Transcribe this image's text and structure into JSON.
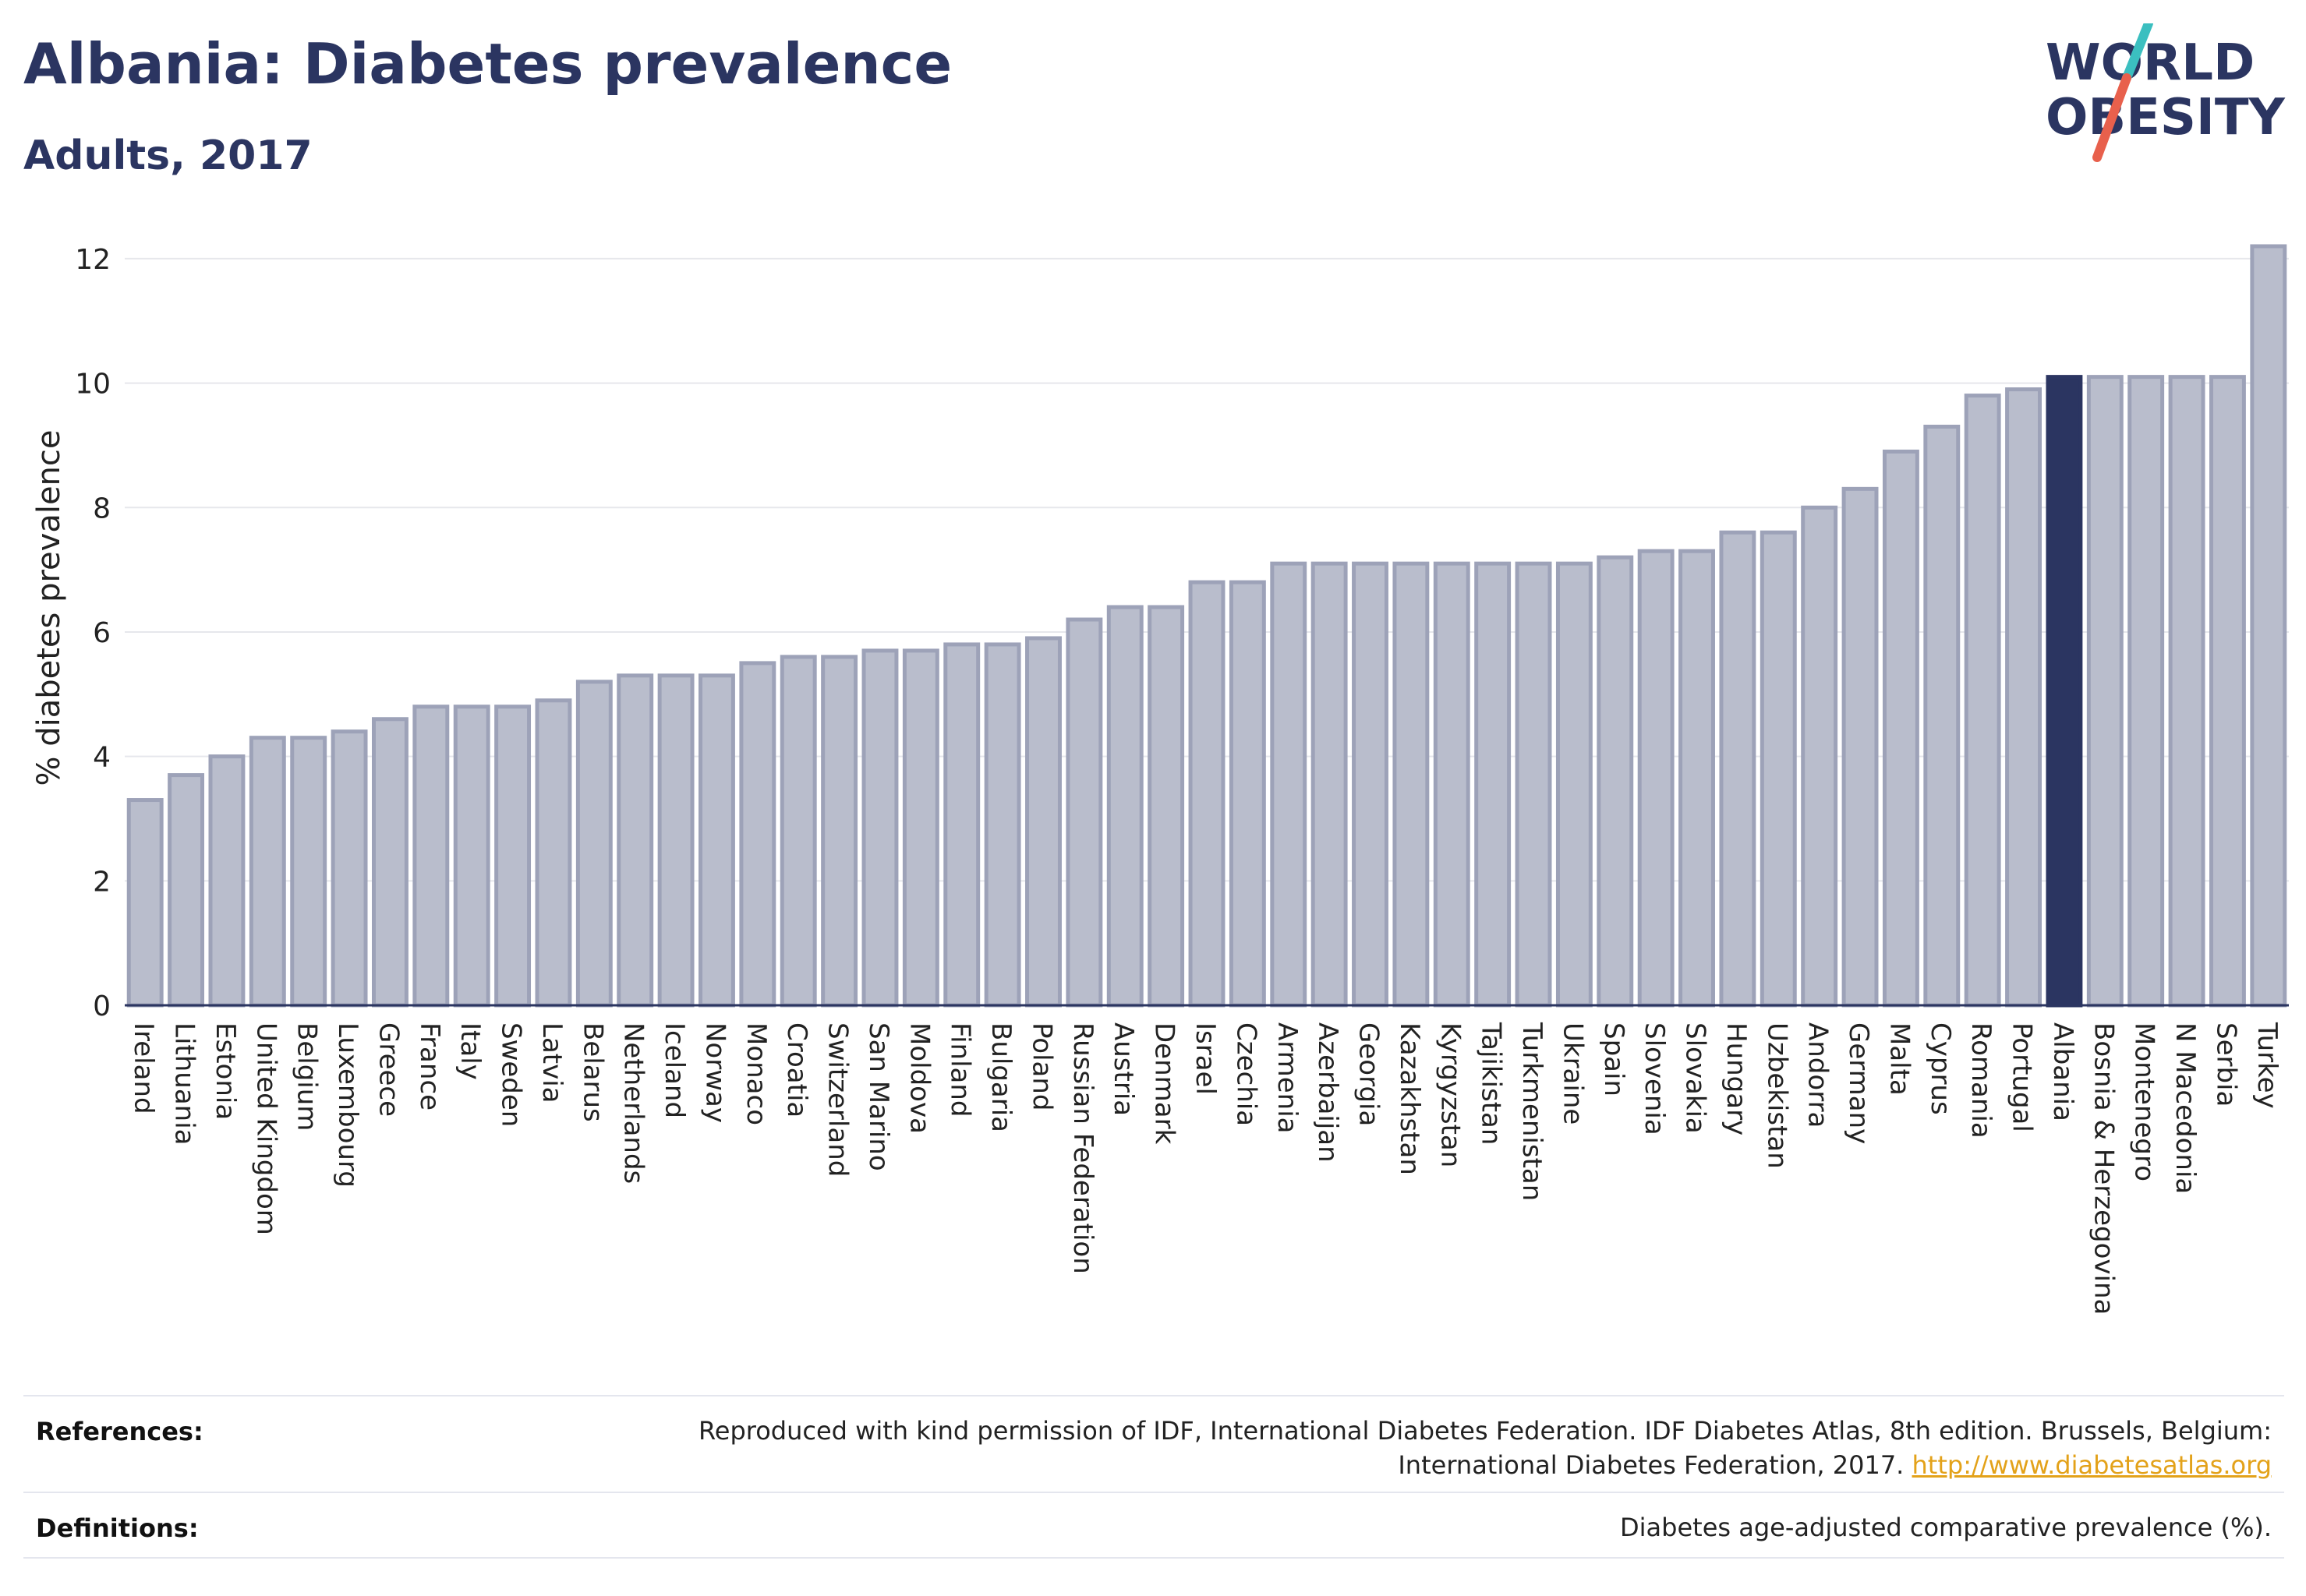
{
  "header": {
    "title": "Albania: Diabetes prevalence",
    "subtitle": "Adults, 2017"
  },
  "logo": {
    "line1": "WORLD",
    "line2": "OBESITY",
    "colors": {
      "text": "#2b3561",
      "slash_top": "#3bbfc0",
      "slash_bottom": "#e8604c"
    }
  },
  "chart_data": {
    "type": "bar",
    "ylabel": "% diabetes prevalence",
    "xlabel": "",
    "ylim": [
      0,
      12.4
    ],
    "yticks": [
      0,
      2,
      4,
      6,
      8,
      10,
      12
    ],
    "grid": true,
    "highlight": "Albania",
    "colors": {
      "bar": "#b9bdcc",
      "bar_edge": "#9da2b8",
      "highlight": "#2b3561"
    },
    "categories": [
      "Ireland",
      "Lithuania",
      "Estonia",
      "United Kingdom",
      "Belgium",
      "Luxembourg",
      "Greece",
      "France",
      "Italy",
      "Sweden",
      "Latvia",
      "Belarus",
      "Netherlands",
      "Iceland",
      "Norway",
      "Monaco",
      "Croatia",
      "Switzerland",
      "San Marino",
      "Moldova",
      "Finland",
      "Bulgaria",
      "Poland",
      "Russian Federation",
      "Austria",
      "Denmark",
      "Israel",
      "Czechia",
      "Armenia",
      "Azerbaijan",
      "Georgia",
      "Kazakhstan",
      "Kyrgyzstan",
      "Tajikistan",
      "Turkmenistan",
      "Ukraine",
      "Spain",
      "Slovenia",
      "Slovakia",
      "Hungary",
      "Uzbekistan",
      "Andorra",
      "Germany",
      "Malta",
      "Cyprus",
      "Romania",
      "Portugal",
      "Albania",
      "Bosnia & Herzegovina",
      "Montenegro",
      "N Macedonia",
      "Serbia",
      "Turkey"
    ],
    "values": [
      3.3,
      3.7,
      4.0,
      4.3,
      4.3,
      4.4,
      4.6,
      4.8,
      4.8,
      4.8,
      4.9,
      5.2,
      5.3,
      5.3,
      5.3,
      5.5,
      5.6,
      5.6,
      5.7,
      5.7,
      5.8,
      5.8,
      5.9,
      6.2,
      6.4,
      6.4,
      6.8,
      6.8,
      7.1,
      7.1,
      7.1,
      7.1,
      7.1,
      7.1,
      7.1,
      7.1,
      7.2,
      7.3,
      7.3,
      7.6,
      7.6,
      8.0,
      8.3,
      8.9,
      9.3,
      9.8,
      9.9,
      10.1,
      10.1,
      10.1,
      10.1,
      10.1,
      12.2
    ]
  },
  "footer": {
    "references_label": "References:",
    "references_line1": "Reproduced with kind permission of IDF, International Diabetes Federation. IDF Diabetes Atlas, 8th edition. Brussels, Belgium:",
    "references_line2": "International Diabetes Federation, 2017.",
    "references_link": "http://www.diabetesatlas.org",
    "definitions_label": "Definitions:",
    "definitions_text": "Diabetes age-adjusted comparative prevalence (%)."
  }
}
